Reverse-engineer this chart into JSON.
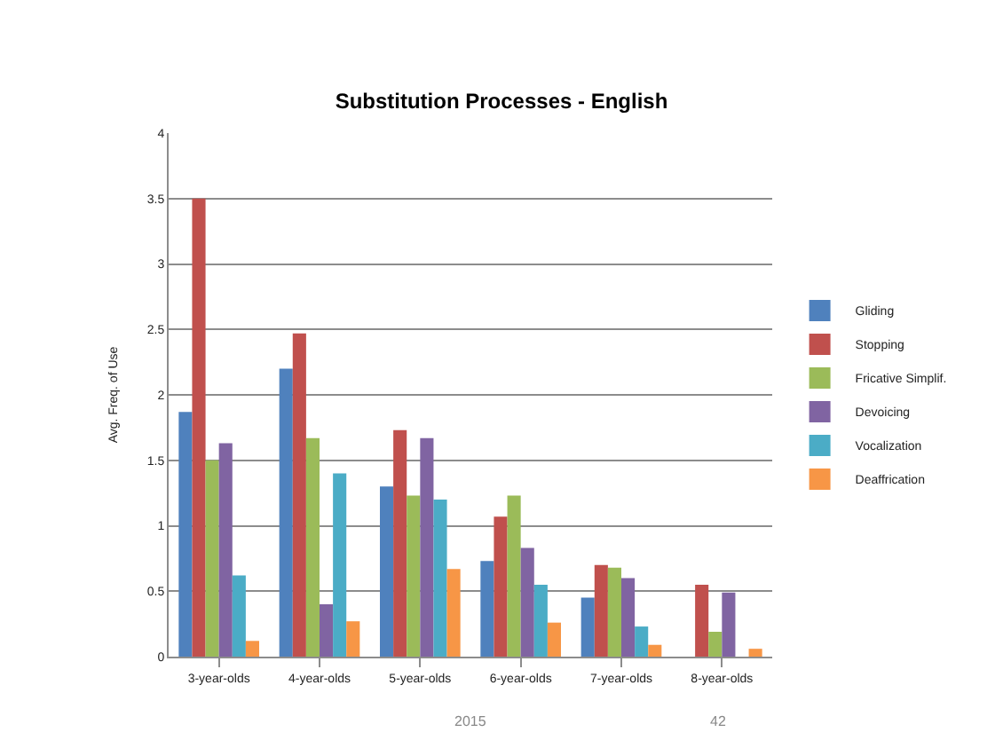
{
  "chart_data": {
    "type": "bar",
    "title": "Substitution Processes - English",
    "ylabel": "Avg. Freq. of Use",
    "categories": [
      "3-year-olds",
      "4-year-olds",
      "5-year-olds",
      "6-year-olds",
      "7-year-olds",
      "8-year-olds"
    ],
    "series": [
      {
        "name": "Gliding",
        "color": "#4f81bd",
        "values": [
          1.87,
          2.2,
          1.3,
          0.73,
          0.45,
          0
        ]
      },
      {
        "name": "Stopping",
        "color": "#c0504d",
        "values": [
          3.5,
          2.47,
          1.73,
          1.07,
          0.7,
          0.55
        ]
      },
      {
        "name": "Fricative Simplif.",
        "color": "#9bbb59",
        "values": [
          1.5,
          1.67,
          1.23,
          1.23,
          0.68,
          0.19
        ]
      },
      {
        "name": "Devoicing",
        "color": "#8064a2",
        "values": [
          1.63,
          0.4,
          1.67,
          0.83,
          0.6,
          0.49
        ]
      },
      {
        "name": "Vocalization",
        "color": "#4bacc6",
        "values": [
          0.62,
          1.4,
          1.2,
          0.55,
          0.23,
          0
        ]
      },
      {
        "name": "Deaffrication",
        "color": "#f79646",
        "values": [
          0.12,
          0.27,
          0.67,
          0.26,
          0.09,
          0.06
        ]
      }
    ],
    "ylim": [
      0,
      4
    ],
    "yticks": [
      0,
      {
        "value": 0.5,
        "label": "0.5"
      },
      1,
      {
        "value": 1.5,
        "label": "1.5"
      },
      2,
      {
        "value": 2.5,
        "label": "2.5"
      },
      3,
      {
        "value": 3.5,
        "label": "3.5"
      },
      4
    ],
    "grid": "y",
    "legend": "right",
    "annotations": [
      "2015",
      "42"
    ]
  }
}
